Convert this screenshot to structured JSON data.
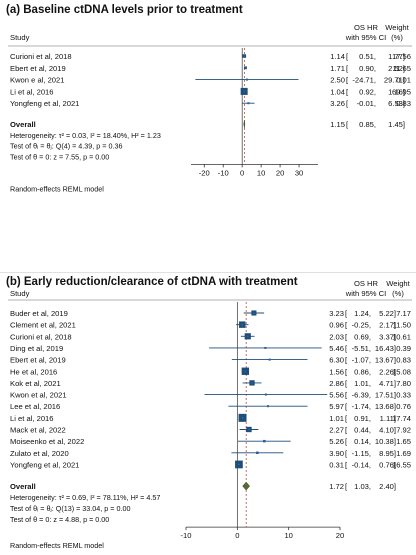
{
  "panels": [
    {
      "title": "(a) Baseline ctDNA levels prior to treatment",
      "header": {
        "study": "Study",
        "hr_line1": "OS HR",
        "hr_line2": "with 95% CI",
        "weight_line1": "Weight",
        "weight_line2": "(%)"
      },
      "footer": "Random-effects REML model",
      "stats": [
        "Heterogeneity: τ² = 0.03, I² = 18.40%, H² = 1.23",
        "Test of θᵢ = θⱼ: Q(4) = 4.39, p = 0.36",
        "Test of θ = 0: z = 7.55, p = 0.00"
      ]
    },
    {
      "title": "(b) Early reduction/clearance of ctDNA with treatment",
      "header": {
        "study": "Study",
        "hr_line1": "OS HR",
        "hr_line2": "with 95% CI",
        "weight_line1": "Weight",
        "weight_line2": "(%)"
      },
      "footer": "Random-effects REML model",
      "stats": [
        "Heterogeneity: τ² = 0.69, I² = 78.11%, H² = 4.57",
        "Test of θᵢ = θⱼ: Q(13) = 33.04, p = 0.00",
        "Test of θ = 0: z = 4.88, p = 0.00"
      ]
    }
  ],
  "chart_data": [
    {
      "type": "forest",
      "title": "(a) Baseline ctDNA levels prior to treatment",
      "xlim": [
        -27,
        40
      ],
      "xticks": [
        -20,
        -10,
        0,
        10,
        20,
        30
      ],
      "null_line": 0,
      "colors": {
        "study": "#1f4e79",
        "overall": "#556b2f",
        "overall_line": "#b03030"
      },
      "studies": [
        {
          "name": "Curioni et al, 2018",
          "hr": 1.14,
          "lo": 0.51,
          "hi": 1.77,
          "hr_label": "1.14",
          "lo_label": "0.51,",
          "hi_label": "1.77]",
          "weight": "17.56"
        },
        {
          "name": "Ebert et al, 2019",
          "hr": 1.71,
          "lo": 0.9,
          "hi": 2.52,
          "hr_label": "1.71",
          "lo_label": "0.90,",
          "hi_label": "2.52]",
          "weight": "11.65"
        },
        {
          "name": "Kwon e al, 2021",
          "hr": 2.5,
          "lo": -24.71,
          "hi": 29.71,
          "hr_label": "2.50",
          "lo_label": "-24.71,",
          "hi_label": "29.71]",
          "weight": "0.01"
        },
        {
          "name": "Li et al, 2016",
          "hr": 1.04,
          "lo": 0.92,
          "hi": 1.16,
          "hr_label": "1.04",
          "lo_label": "0.92,",
          "hi_label": "1.16]",
          "weight": "69.95"
        },
        {
          "name": "Yongfeng et al, 2021",
          "hr": 3.26,
          "lo": -0.01,
          "hi": 6.53,
          "hr_label": "3.26",
          "lo_label": "-0.01,",
          "hi_label": "6.53]",
          "weight": "0.83"
        }
      ],
      "overall": {
        "name": "Overall",
        "hr": 1.15,
        "lo": 0.85,
        "hi": 1.45,
        "hr_label": "1.15",
        "lo_label": "0.85,",
        "hi_label": "1.45]"
      }
    },
    {
      "type": "forest",
      "title": "(b) Early reduction/clearance of ctDNA with treatment",
      "xlim": [
        -10,
        20
      ],
      "xticks": [
        -10,
        0,
        10,
        20
      ],
      "null_line": 0,
      "colors": {
        "study": "#1f4e79",
        "overall": "#556b2f",
        "overall_line": "#b03030"
      },
      "studies": [
        {
          "name": "Buder et al, 2019",
          "hr": 3.23,
          "lo": 1.24,
          "hi": 5.22,
          "hr_label": "3.23",
          "lo_label": "1.24,",
          "hi_label": "5.22]",
          "weight": "7.17"
        },
        {
          "name": "Clement et al, 2021",
          "hr": 0.96,
          "lo": -0.25,
          "hi": 2.17,
          "hr_label": "0.96",
          "lo_label": "-0.25,",
          "hi_label": "2.17]",
          "weight": "11.50"
        },
        {
          "name": "Curioni et al, 2018",
          "hr": 2.03,
          "lo": 0.69,
          "hi": 3.37,
          "hr_label": "2.03",
          "lo_label": "0.69,",
          "hi_label": "3.37]",
          "weight": "10.61"
        },
        {
          "name": "Ding et al, 2019",
          "hr": 5.46,
          "lo": -5.51,
          "hi": 16.43,
          "hr_label": "5.46",
          "lo_label": "-5.51,",
          "hi_label": "16.43]",
          "weight": "0.39"
        },
        {
          "name": "Ebert et al, 2019",
          "hr": 6.3,
          "lo": -1.07,
          "hi": 13.67,
          "hr_label": "6.30",
          "lo_label": "-1.07,",
          "hi_label": "13.67]",
          "weight": "0.83"
        },
        {
          "name": "He et al, 2016",
          "hr": 1.56,
          "lo": 0.86,
          "hi": 2.26,
          "hr_label": "1.56",
          "lo_label": "0.86,",
          "hi_label": "2.26]",
          "weight": "15.08"
        },
        {
          "name": "Kok et al, 2021",
          "hr": 2.86,
          "lo": 1.01,
          "hi": 4.71,
          "hr_label": "2.86",
          "lo_label": "1.01,",
          "hi_label": "4.71]",
          "weight": "7.80"
        },
        {
          "name": "Kwon et al, 2021",
          "hr": 5.56,
          "lo": -6.39,
          "hi": 17.51,
          "hr_label": "5.56",
          "lo_label": "-6.39,",
          "hi_label": "17.51]",
          "weight": "0.33"
        },
        {
          "name": "Lee et al, 2016",
          "hr": 5.97,
          "lo": -1.74,
          "hi": 13.68,
          "hr_label": "5.97",
          "lo_label": "-1.74,",
          "hi_label": "13.68]",
          "weight": "0.76"
        },
        {
          "name": "Li et al, 2016",
          "hr": 1.01,
          "lo": 0.91,
          "hi": 1.11,
          "hr_label": "1.01",
          "lo_label": "0.91,",
          "hi_label": "1.11]",
          "weight": "17.74"
        },
        {
          "name": "Mack et al, 2022",
          "hr": 2.27,
          "lo": 0.44,
          "hi": 4.1,
          "hr_label": "2.27",
          "lo_label": "0.44,",
          "hi_label": "4.10]",
          "weight": "7.92"
        },
        {
          "name": "Moiseenko et al, 2022",
          "hr": 5.26,
          "lo": 0.14,
          "hi": 10.38,
          "hr_label": "5.26",
          "lo_label": "0.14,",
          "hi_label": "10.38]",
          "weight": "1.65"
        },
        {
          "name": "Zulato et al, 2020",
          "hr": 3.9,
          "lo": -1.15,
          "hi": 8.95,
          "hr_label": "3.90",
          "lo_label": "-1.15,",
          "hi_label": "8.95]",
          "weight": "1.69"
        },
        {
          "name": "Yongfeng et al, 2021",
          "hr": 0.31,
          "lo": -0.14,
          "hi": 0.76,
          "hr_label": "0.31",
          "lo_label": "-0.14,",
          "hi_label": "0.76]",
          "weight": "16.55"
        }
      ],
      "overall": {
        "name": "Overall",
        "hr": 1.72,
        "lo": 1.03,
        "hi": 2.4,
        "hr_label": "1.72",
        "lo_label": "1.03,",
        "hi_label": "2.40]"
      }
    }
  ]
}
